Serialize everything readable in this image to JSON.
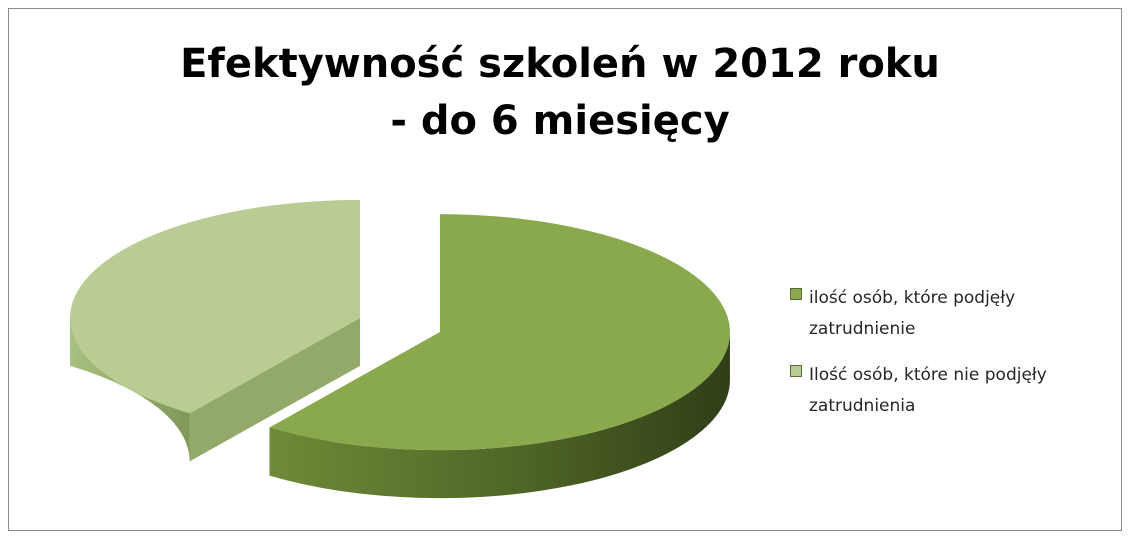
{
  "chart_data": {
    "type": "pie",
    "title": "Efektywność szkoleń w 2012 roku\n- do 6 miesięcy",
    "categories": [
      "ilość osób, które podjęły zatrudnienie",
      "Ilość osób, które nie podjęły zatrudnienia"
    ],
    "values": [
      60,
      40
    ],
    "colors": [
      "#8aa84c",
      "#b8cc93"
    ],
    "legend": "right",
    "three_d": true,
    "exploded": true
  }
}
